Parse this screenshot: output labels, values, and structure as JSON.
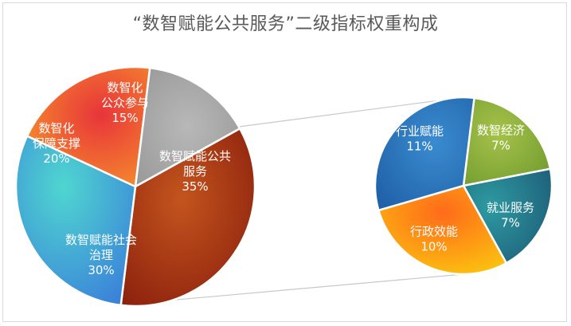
{
  "chart_data": {
    "type": "pie",
    "title": "“数智赋能公共服务”二级指标权重构成",
    "main_pie": {
      "slices": [
        {
          "lines": [
            "数智赋能公共",
            "服务"
          ],
          "percent_label": "35%",
          "value": 35,
          "color": "#a8360f"
        },
        {
          "lines": [
            "数智赋能社会",
            "治理"
          ],
          "percent_label": "30%",
          "value": 30,
          "color": "#45b0e0"
        },
        {
          "lines": [
            "数智化",
            "保障支撑"
          ],
          "percent_label": "20%",
          "value": 20,
          "color": "#f05a2f"
        },
        {
          "lines": [
            "数智化",
            "公众参与"
          ],
          "percent_label": "15%",
          "value": 15,
          "color": "#a9a9a9"
        }
      ]
    },
    "sub_pie": {
      "breakdown_of": "数智赋能公共服务",
      "slices": [
        {
          "lines": [
            "数智经济"
          ],
          "percent_label": "7%",
          "value": 7,
          "color": "#8fb23a"
        },
        {
          "lines": [
            "就业服务"
          ],
          "percent_label": "7%",
          "value": 7,
          "color": "#23808f"
        },
        {
          "lines": [
            "行政效能"
          ],
          "percent_label": "10%",
          "value": 10,
          "color": "#fb8c16"
        },
        {
          "lines": [
            "行业赋能"
          ],
          "percent_label": "11%",
          "value": 11,
          "color": "#2f78c2"
        }
      ]
    }
  }
}
